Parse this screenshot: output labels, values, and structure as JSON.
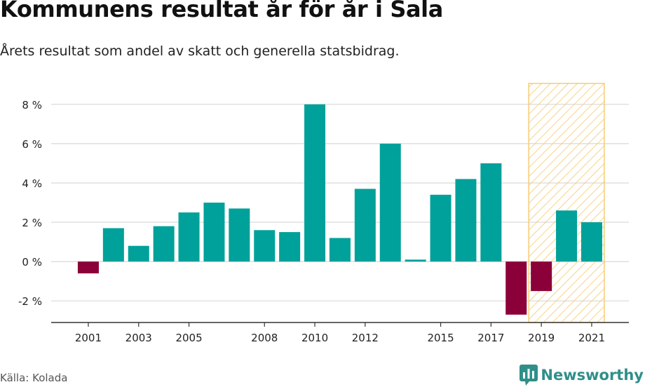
{
  "title": "Kommunens resultat år för år i Sala",
  "subtitle": "Årets resultat som andel av skatt och generella statsbidrag.",
  "source": "Källa: Kolada",
  "brand": "Newsworthy",
  "colors": {
    "positive": "#00a19a",
    "negative": "#8b0039",
    "highlight": "#f5c96a",
    "grid": "#d9d9d9",
    "axis": "#333333",
    "brand": "#2f8f89"
  },
  "chart_data": {
    "type": "bar",
    "categories": [
      "2001",
      "2002",
      "2003",
      "2004",
      "2005",
      "2006",
      "2007",
      "2008",
      "2009",
      "2010",
      "2011",
      "2012",
      "2013",
      "2014",
      "2015",
      "2016",
      "2017",
      "2018",
      "2019",
      "2020",
      "2021"
    ],
    "values": [
      -0.6,
      1.7,
      0.8,
      1.8,
      2.5,
      3.0,
      2.7,
      1.6,
      1.5,
      8.0,
      1.2,
      3.7,
      6.0,
      0.1,
      3.4,
      4.2,
      5.0,
      -2.7,
      -1.5,
      2.6,
      2.0
    ],
    "x_tick_labels": [
      "2001",
      "2003",
      "2005",
      "2008",
      "2010",
      "2012",
      "2015",
      "2017",
      "2019",
      "2021"
    ],
    "y_ticks": [
      -2,
      0,
      2,
      4,
      6,
      8
    ],
    "y_tick_labels": [
      "-2 %",
      "0 %",
      "2 %",
      "4 %",
      "6 %",
      "8 %"
    ],
    "ylim": [
      -3.1,
      9.1
    ],
    "highlight_categories": [
      "2019",
      "2020",
      "2021"
    ],
    "grid": true
  }
}
